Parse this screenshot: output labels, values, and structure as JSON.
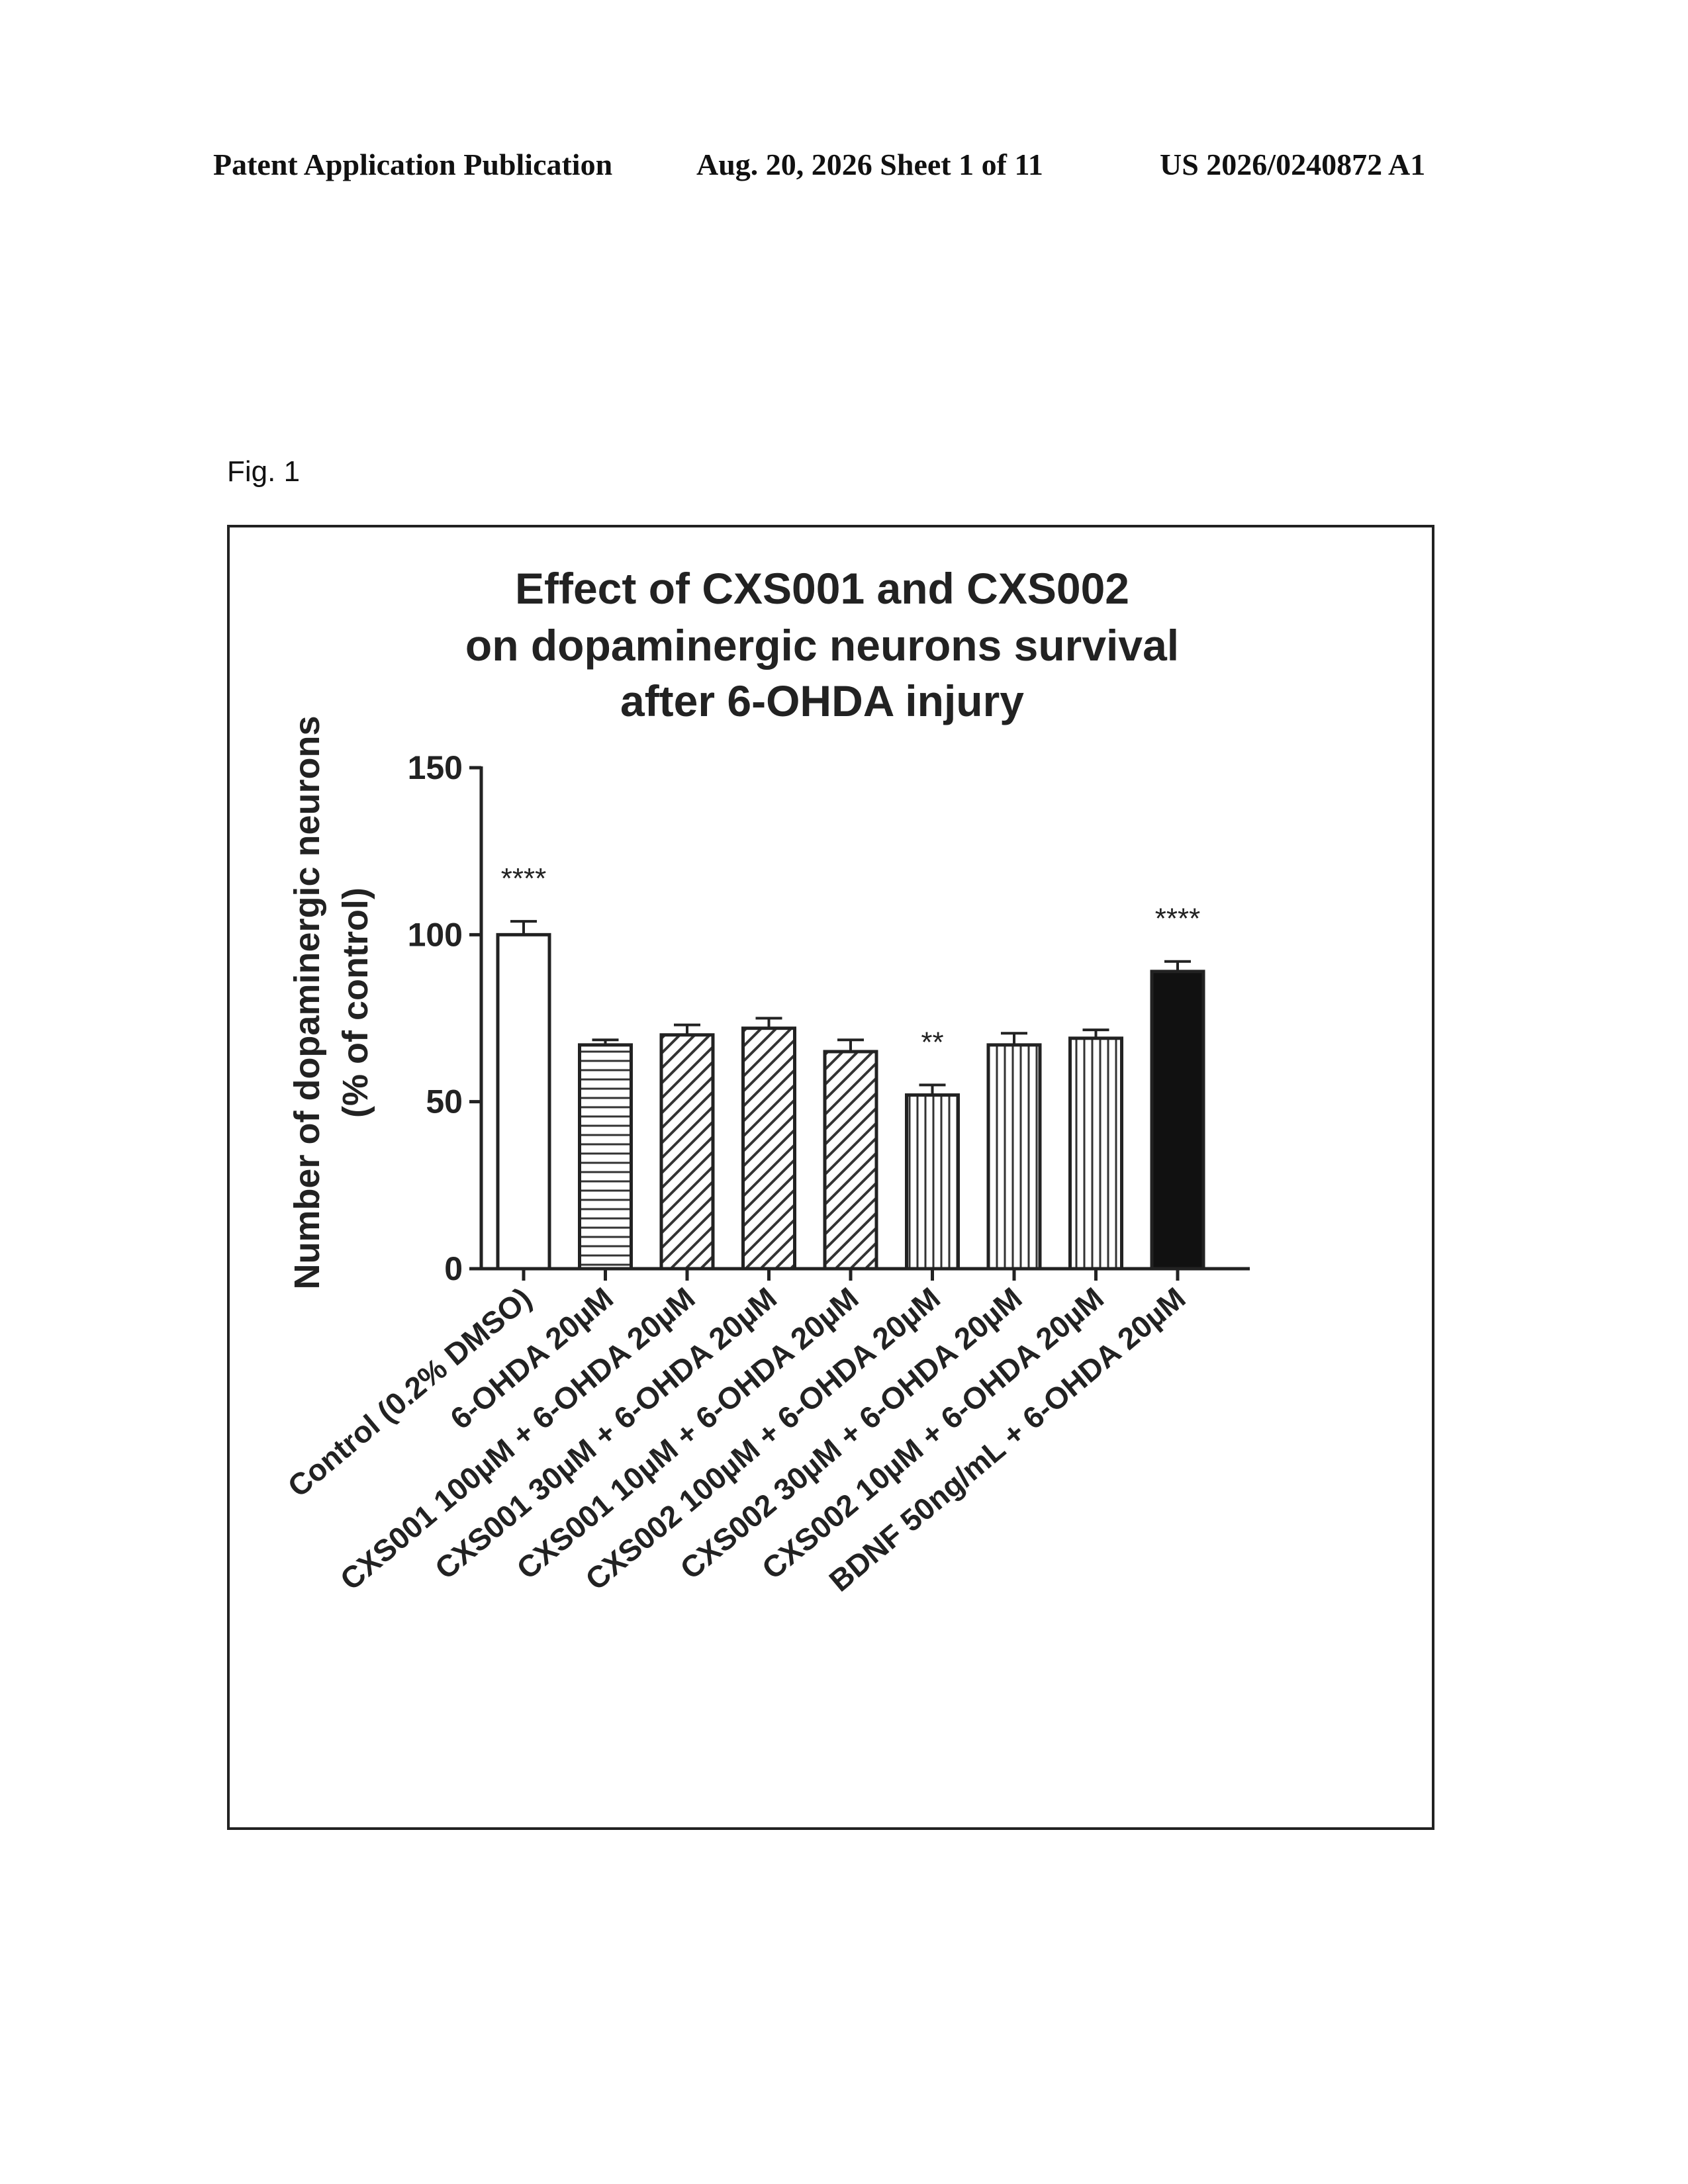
{
  "header": {
    "left": "Patent Application Publication",
    "middle": "Aug. 20, 2026  Sheet 1 of 11",
    "right": "US 2026/0240872 A1"
  },
  "figure_label": "Fig. 1",
  "chart_data": {
    "type": "bar",
    "title": [
      "Effect of CXS001 and CXS002",
      "on dopaminergic neurons survival",
      "after 6-OHDA injury"
    ],
    "ylabel": [
      "Number of dopaminergic neurons",
      "(% of control)"
    ],
    "xlabel": "",
    "ylim": [
      0,
      150
    ],
    "yticks": [
      0,
      50,
      100,
      150
    ],
    "categories": [
      "Control (0.2% DMSO)",
      "6-OHDA 20µM",
      "CXS001 100µM + 6-OHDA 20µM",
      "CXS001 30µM + 6-OHDA 20µM",
      "CXS001 10µM + 6-OHDA 20µM",
      "CXS002 100µM + 6-OHDA 20µM",
      "CXS002 30µM + 6-OHDA 20µM",
      "CXS002 10µM + 6-OHDA 20µM",
      "BDNF 50ng/mL + 6-OHDA 20µM"
    ],
    "values": [
      100,
      67,
      70,
      72,
      65,
      52,
      67,
      69,
      89
    ],
    "errors": [
      4,
      1.5,
      3,
      3,
      3.5,
      3,
      3.5,
      2.5,
      3
    ],
    "significance": [
      "****",
      "",
      "",
      "",
      "",
      "**",
      "",
      "",
      "****"
    ],
    "fills": [
      "white",
      "horizontal-hatch",
      "diagonal-hatch",
      "diagonal-hatch",
      "diagonal-hatch",
      "vertical-hatch",
      "vertical-hatch",
      "vertical-hatch",
      "solid-black"
    ],
    "grid": false,
    "legend": "none"
  }
}
